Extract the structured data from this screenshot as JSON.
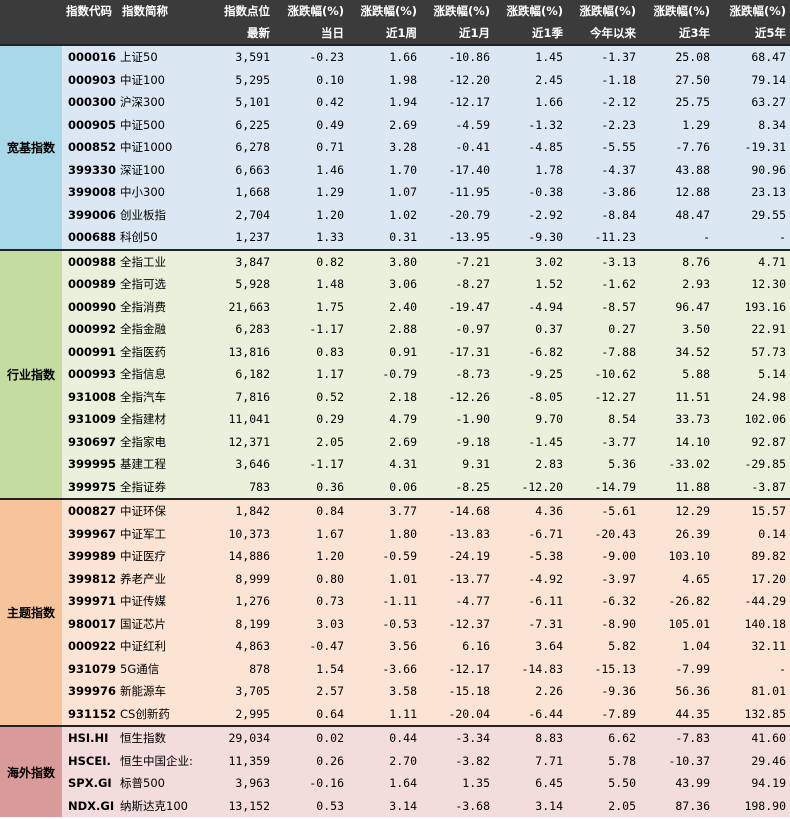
{
  "header": {
    "row1": [
      "指数代码",
      "指数简称",
      "指数点位",
      "涨跌幅(%)",
      "涨跌幅(%)",
      "涨跌幅(%)",
      "涨跌幅(%)",
      "涨跌幅(%)",
      "涨跌幅(%)",
      "涨跌幅(%)"
    ],
    "row2": [
      "",
      "",
      "最新",
      "当日",
      "近1周",
      "近1月",
      "近1季",
      "今年以来",
      "近3年",
      "近5年"
    ]
  },
  "groups": [
    {
      "name": "宽基指数",
      "rows": [
        [
          "000016",
          "上证50",
          "3,591",
          "-0.23",
          "1.66",
          "-10.86",
          "1.45",
          "-1.37",
          "25.08",
          "68.47"
        ],
        [
          "000903",
          "中证100",
          "5,295",
          "0.10",
          "1.98",
          "-12.20",
          "2.45",
          "-1.18",
          "27.50",
          "79.14"
        ],
        [
          "000300",
          "沪深300",
          "5,101",
          "0.42",
          "1.94",
          "-12.17",
          "1.66",
          "-2.12",
          "25.75",
          "63.27"
        ],
        [
          "000905",
          "中证500",
          "6,225",
          "0.49",
          "2.69",
          "-4.59",
          "-1.32",
          "-2.23",
          "1.29",
          "8.34"
        ],
        [
          "000852",
          "中证1000",
          "6,278",
          "0.71",
          "3.28",
          "-0.41",
          "-4.85",
          "-5.55",
          "-7.76",
          "-19.31"
        ],
        [
          "399330",
          "深证100",
          "6,663",
          "1.46",
          "1.70",
          "-17.40",
          "1.78",
          "-4.37",
          "43.88",
          "90.96"
        ],
        [
          "399008",
          "中小300",
          "1,668",
          "1.29",
          "1.07",
          "-11.95",
          "-0.38",
          "-3.86",
          "12.88",
          "23.13"
        ],
        [
          "399006",
          "创业板指",
          "2,704",
          "1.20",
          "1.02",
          "-20.79",
          "-2.92",
          "-8.84",
          "48.47",
          "29.55"
        ],
        [
          "000688",
          "科创50",
          "1,237",
          "1.33",
          "0.31",
          "-13.95",
          "-9.30",
          "-11.23",
          "-",
          "-"
        ]
      ]
    },
    {
      "name": "行业指数",
      "rows": [
        [
          "000988",
          "全指工业",
          "3,847",
          "0.82",
          "3.80",
          "-7.21",
          "3.02",
          "-3.13",
          "8.76",
          "4.71"
        ],
        [
          "000989",
          "全指可选",
          "5,928",
          "1.48",
          "3.06",
          "-8.27",
          "1.52",
          "-1.62",
          "2.93",
          "12.30"
        ],
        [
          "000990",
          "全指消费",
          "21,663",
          "1.75",
          "2.40",
          "-19.47",
          "-4.94",
          "-8.57",
          "96.47",
          "193.16"
        ],
        [
          "000992",
          "全指金融",
          "6,283",
          "-1.17",
          "2.88",
          "-0.97",
          "0.37",
          "0.27",
          "3.50",
          "22.91"
        ],
        [
          "000991",
          "全指医药",
          "13,816",
          "0.83",
          "0.91",
          "-17.31",
          "-6.82",
          "-7.88",
          "34.52",
          "57.73"
        ],
        [
          "000993",
          "全指信息",
          "6,182",
          "1.17",
          "-0.79",
          "-8.73",
          "-9.25",
          "-10.62",
          "5.88",
          "5.14"
        ],
        [
          "931008",
          "全指汽车",
          "7,816",
          "0.52",
          "2.18",
          "-12.26",
          "-8.05",
          "-12.27",
          "11.51",
          "24.98"
        ],
        [
          "931009",
          "全指建材",
          "11,041",
          "0.29",
          "4.79",
          "-1.90",
          "9.70",
          "8.54",
          "33.73",
          "102.06"
        ],
        [
          "930697",
          "全指家电",
          "12,371",
          "2.05",
          "2.69",
          "-9.18",
          "-1.45",
          "-3.77",
          "14.10",
          "92.87"
        ],
        [
          "399995",
          "基建工程",
          "3,646",
          "-1.17",
          "4.31",
          "9.31",
          "2.83",
          "5.36",
          "-33.02",
          "-29.85"
        ],
        [
          "399975",
          "全指证券",
          "783",
          "0.36",
          "0.06",
          "-8.25",
          "-12.20",
          "-14.79",
          "11.88",
          "-3.87"
        ]
      ]
    },
    {
      "name": "主题指数",
      "rows": [
        [
          "000827",
          "中证环保",
          "1,842",
          "0.84",
          "3.77",
          "-14.68",
          "4.36",
          "-5.61",
          "12.29",
          "15.57"
        ],
        [
          "399967",
          "中证军工",
          "10,373",
          "1.67",
          "1.80",
          "-13.83",
          "-6.71",
          "-20.43",
          "26.39",
          "0.14"
        ],
        [
          "399989",
          "中证医疗",
          "14,886",
          "1.20",
          "-0.59",
          "-24.19",
          "-5.38",
          "-9.00",
          "103.10",
          "89.82"
        ],
        [
          "399812",
          "养老产业",
          "8,999",
          "0.80",
          "1.01",
          "-13.77",
          "-4.92",
          "-3.97",
          "4.65",
          "17.20"
        ],
        [
          "399971",
          "中证传媒",
          "1,276",
          "0.73",
          "-1.11",
          "-4.77",
          "-6.11",
          "-6.32",
          "-26.82",
          "-44.29"
        ],
        [
          "980017",
          "国证芯片",
          "8,199",
          "3.03",
          "-0.53",
          "-12.37",
          "-7.31",
          "-8.90",
          "105.01",
          "140.18"
        ],
        [
          "000922",
          "中证红利",
          "4,863",
          "-0.47",
          "3.56",
          "6.16",
          "3.64",
          "5.82",
          "1.04",
          "32.11"
        ],
        [
          "931079",
          "5G通信",
          "878",
          "1.54",
          "-3.66",
          "-12.17",
          "-14.83",
          "-15.13",
          "-7.99",
          "-"
        ],
        [
          "399976",
          "新能源车",
          "3,705",
          "2.57",
          "3.58",
          "-15.18",
          "2.26",
          "-9.36",
          "56.36",
          "81.01"
        ],
        [
          "931152",
          "CS创新药",
          "2,995",
          "0.64",
          "1.11",
          "-20.04",
          "-6.44",
          "-7.89",
          "44.35",
          "132.85"
        ]
      ]
    },
    {
      "name": "海外指数",
      "rows": [
        [
          "HSI.HI",
          "恒生指数",
          "29,034",
          "0.02",
          "0.44",
          "-3.34",
          "8.83",
          "6.62",
          "-7.83",
          "41.60"
        ],
        [
          "HSCEI.",
          "恒生中国企业:",
          "11,359",
          "0.26",
          "2.70",
          "-3.82",
          "7.71",
          "5.78",
          "-10.37",
          "29.46"
        ],
        [
          "SPX.GI",
          "标普500",
          "3,963",
          "-0.16",
          "1.64",
          "1.35",
          "6.45",
          "5.50",
          "43.99",
          "94.19"
        ],
        [
          "NDX.GI",
          "纳斯达克100",
          "13,152",
          "0.53",
          "3.14",
          "-3.68",
          "3.14",
          "2.05",
          "87.36",
          "198.90"
        ]
      ]
    }
  ]
}
